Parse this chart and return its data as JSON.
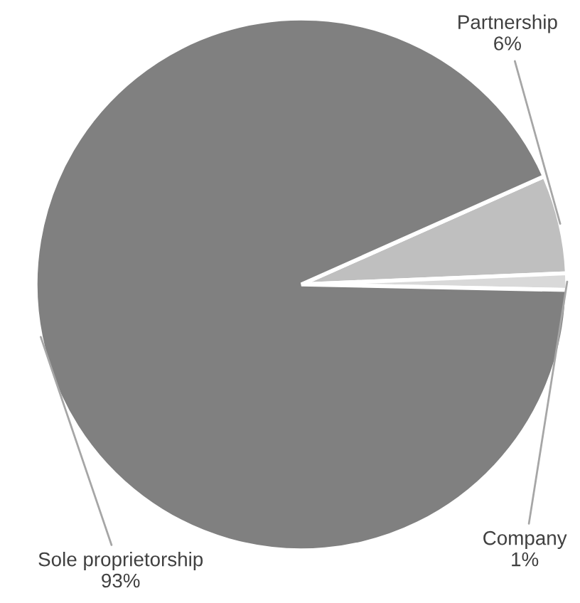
{
  "chart_data": {
    "type": "pie",
    "categories": [
      "Partnership",
      "Company",
      "Sole proprietorship"
    ],
    "values": [
      6,
      1,
      93
    ],
    "value_labels": [
      "6%",
      "1%",
      "93%"
    ],
    "colors": [
      "#bfbfbf",
      "#d9d9d9",
      "#808080"
    ],
    "legend": false
  }
}
